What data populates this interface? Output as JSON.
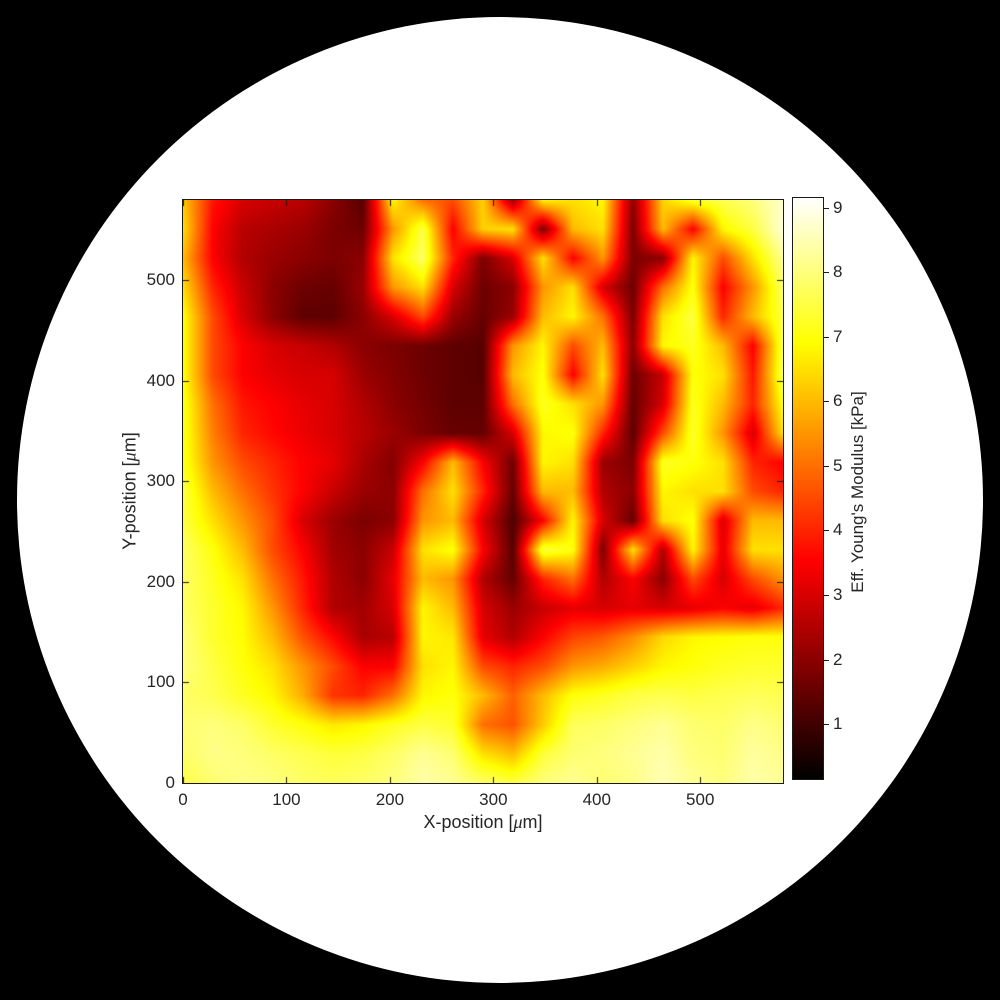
{
  "figure": {
    "background_color": "#000000",
    "circle_color": "#ffffff",
    "axis_color": "#1a1a1a",
    "text_color": "#262626"
  },
  "chart_data": {
    "type": "heatmap",
    "xlabel": "X-position [μm]",
    "ylabel": "Y-position [μm]",
    "colorbar_label": "Eff. Young's Modulus [kPa]",
    "colormap": "hot",
    "xlim": [
      0,
      580
    ],
    "ylim": [
      0,
      580
    ],
    "clim": [
      0.15,
      9.15
    ],
    "x_ticks": [
      0,
      100,
      200,
      300,
      400,
      500
    ],
    "y_ticks": [
      0,
      100,
      200,
      300,
      400,
      500
    ],
    "colorbar_ticks": [
      1,
      2,
      3,
      4,
      5,
      6,
      7,
      8,
      9
    ],
    "x": [
      0,
      29,
      58,
      87,
      116,
      145,
      174,
      203,
      232,
      261,
      290,
      319,
      348,
      377,
      406,
      435,
      464,
      493,
      522,
      551,
      580
    ],
    "y": [
      0,
      29,
      58,
      87,
      116,
      145,
      174,
      203,
      232,
      261,
      290,
      319,
      348,
      377,
      406,
      435,
      464,
      493,
      522,
      551,
      580
    ],
    "values": [
      [
        7.5,
        7.9,
        8.1,
        8.0,
        7.8,
        7.7,
        7.8,
        8.0,
        8.4,
        8.2,
        7.8,
        7.5,
        8.0,
        8.2,
        7.9,
        8.1,
        8.5,
        8.2,
        8.0,
        8.4,
        8.2
      ],
      [
        7.8,
        8.1,
        8.0,
        7.8,
        7.6,
        7.4,
        7.5,
        7.8,
        8.2,
        7.9,
        6.5,
        6.0,
        7.4,
        7.9,
        8.0,
        8.2,
        8.4,
        8.0,
        7.9,
        8.3,
        8.1
      ],
      [
        7.9,
        8.0,
        7.8,
        7.3,
        7.0,
        6.6,
        6.8,
        7.2,
        7.5,
        7.3,
        5.0,
        4.6,
        6.2,
        7.7,
        7.8,
        8.0,
        8.2,
        7.9,
        7.8,
        8.1,
        7.9
      ],
      [
        7.8,
        7.6,
        7.2,
        6.8,
        5.8,
        4.2,
        4.0,
        5.0,
        6.8,
        7.0,
        6.0,
        4.8,
        6.0,
        7.0,
        7.2,
        7.5,
        7.6,
        7.5,
        7.6,
        7.7,
        7.6
      ],
      [
        8.0,
        7.5,
        7.0,
        6.5,
        5.5,
        4.5,
        3.5,
        3.5,
        6.5,
        6.8,
        4.5,
        4.0,
        4.5,
        5.5,
        5.8,
        6.3,
        6.8,
        7.0,
        7.2,
        7.3,
        7.3
      ],
      [
        8.0,
        7.3,
        6.9,
        6.0,
        4.6,
        3.6,
        2.4,
        2.6,
        6.8,
        6.6,
        3.2,
        2.5,
        3.5,
        4.4,
        4.7,
        5.4,
        6.4,
        6.8,
        6.9,
        7.0,
        7.0
      ],
      [
        7.8,
        7.3,
        6.8,
        5.5,
        4.0,
        2.5,
        2.3,
        3.0,
        6.8,
        6.0,
        3.0,
        2.2,
        2.8,
        3.2,
        3.0,
        3.2,
        3.0,
        3.2,
        3.5,
        3.2,
        4.0
      ],
      [
        7.8,
        7.2,
        6.5,
        5.0,
        3.8,
        2.5,
        2.0,
        3.2,
        6.0,
        5.5,
        2.5,
        1.5,
        4.0,
        5.0,
        2.5,
        3.5,
        2.0,
        4.5,
        3.0,
        4.5,
        5.5
      ],
      [
        7.8,
        7.0,
        6.0,
        4.5,
        3.5,
        2.3,
        2.0,
        2.8,
        6.5,
        7.0,
        3.5,
        1.3,
        7.5,
        7.0,
        1.8,
        6.5,
        2.5,
        6.8,
        3.2,
        6.5,
        6.5
      ],
      [
        7.5,
        6.5,
        5.5,
        4.5,
        3.0,
        2.2,
        1.8,
        2.0,
        5.5,
        6.0,
        3.0,
        1.2,
        3.5,
        6.8,
        3.0,
        1.5,
        6.5,
        7.0,
        3.0,
        6.0,
        6.0
      ],
      [
        7.5,
        6.0,
        5.0,
        4.2,
        3.5,
        2.8,
        2.2,
        2.0,
        5.0,
        6.5,
        4.0,
        1.5,
        6.0,
        6.0,
        2.5,
        2.0,
        6.8,
        6.5,
        6.5,
        4.5,
        4.0
      ],
      [
        7.2,
        5.5,
        4.5,
        4.0,
        3.5,
        3.2,
        2.4,
        1.9,
        3.5,
        6.0,
        3.5,
        1.6,
        6.8,
        6.5,
        2.2,
        1.8,
        7.2,
        7.0,
        6.5,
        4.0,
        3.5
      ],
      [
        7.2,
        5.2,
        4.0,
        3.6,
        3.3,
        3.0,
        2.6,
        2.2,
        1.8,
        1.5,
        1.5,
        3.0,
        6.8,
        7.0,
        4.0,
        1.4,
        4.5,
        7.3,
        5.5,
        3.0,
        6.5
      ],
      [
        7.2,
        5.0,
        3.8,
        3.5,
        3.2,
        3.0,
        2.5,
        2.0,
        1.7,
        1.4,
        1.4,
        5.0,
        7.2,
        6.5,
        5.5,
        1.5,
        3.0,
        7.2,
        6.0,
        4.0,
        7.0
      ],
      [
        7.0,
        4.5,
        3.5,
        3.2,
        3.0,
        3.0,
        2.2,
        1.9,
        1.6,
        1.4,
        1.3,
        6.0,
        7.0,
        3.5,
        6.5,
        1.6,
        2.8,
        7.0,
        6.5,
        3.8,
        7.6
      ],
      [
        7.0,
        4.5,
        3.5,
        3.0,
        2.8,
        2.5,
        2.0,
        1.8,
        1.6,
        1.4,
        1.3,
        5.5,
        6.8,
        4.5,
        6.0,
        2.0,
        6.8,
        7.2,
        6.0,
        3.5,
        7.5
      ],
      [
        7.0,
        4.5,
        3.0,
        2.0,
        1.4,
        1.4,
        2.0,
        3.0,
        4.5,
        2.2,
        1.5,
        2.2,
        6.0,
        6.8,
        5.0,
        1.8,
        6.5,
        7.5,
        4.0,
        6.0,
        7.5
      ],
      [
        6.5,
        4.0,
        2.8,
        2.0,
        1.6,
        1.5,
        2.2,
        5.5,
        6.5,
        3.0,
        1.6,
        2.0,
        5.5,
        6.5,
        3.0,
        1.6,
        5.0,
        7.0,
        3.5,
        5.5,
        7.8
      ],
      [
        6.0,
        3.5,
        2.5,
        2.2,
        2.0,
        1.8,
        2.0,
        6.5,
        7.8,
        4.0,
        1.8,
        3.0,
        6.5,
        3.5,
        5.5,
        1.8,
        2.0,
        6.8,
        4.5,
        6.5,
        8.2
      ],
      [
        6.5,
        3.5,
        2.6,
        2.4,
        2.2,
        1.8,
        1.6,
        5.5,
        7.5,
        3.5,
        6.3,
        6.5,
        1.8,
        6.0,
        6.5,
        1.8,
        6.0,
        3.5,
        6.8,
        7.5,
        8.8
      ],
      [
        6.2,
        3.8,
        3.0,
        2.8,
        2.6,
        2.0,
        1.3,
        6.8,
        5.0,
        4.5,
        6.3,
        2.2,
        6.8,
        6.5,
        6.8,
        2.0,
        6.3,
        7.3,
        7.6,
        8.0,
        8.7
      ]
    ]
  }
}
